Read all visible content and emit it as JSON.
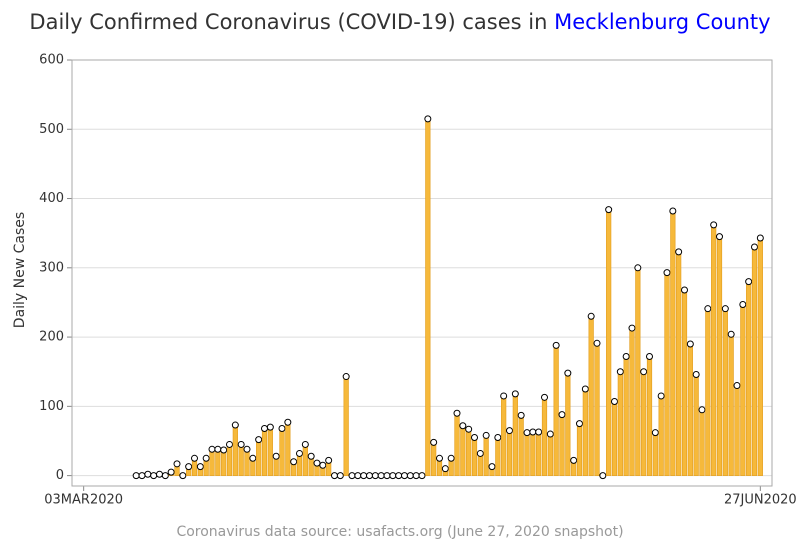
{
  "chart_data": {
    "type": "needle",
    "title": "Daily Confirmed Coronavirus (COVID-19) cases in ",
    "title_highlight": "Mecklenburg County",
    "title_highlight_color": "#0000ff",
    "y_label": "Daily New Cases",
    "footnote": "Coronavirus data source: usafacts.org (June 27, 2020 snapshot)",
    "color": "#f6b93b",
    "grid": true,
    "ylim": [
      -15,
      600
    ],
    "yticks": [
      0,
      100,
      200,
      300,
      400,
      500,
      600
    ],
    "xlim": [
      "2020-03-01",
      "2020-06-29"
    ],
    "xticks": [
      {
        "value": "2020-03-03",
        "label": "03MAR2020"
      },
      {
        "value": "2020-06-27",
        "label": "27JUN2020"
      }
    ],
    "x": [
      "2020-03-12",
      "2020-03-13",
      "2020-03-14",
      "2020-03-15",
      "2020-03-16",
      "2020-03-17",
      "2020-03-18",
      "2020-03-19",
      "2020-03-20",
      "2020-03-21",
      "2020-03-22",
      "2020-03-23",
      "2020-03-24",
      "2020-03-25",
      "2020-03-26",
      "2020-03-27",
      "2020-03-28",
      "2020-03-29",
      "2020-03-30",
      "2020-03-31",
      "2020-04-01",
      "2020-04-02",
      "2020-04-03",
      "2020-04-04",
      "2020-04-05",
      "2020-04-06",
      "2020-04-07",
      "2020-04-08",
      "2020-04-09",
      "2020-04-10",
      "2020-04-11",
      "2020-04-12",
      "2020-04-13",
      "2020-04-14",
      "2020-04-15",
      "2020-04-16",
      "2020-04-17",
      "2020-04-18",
      "2020-04-19",
      "2020-04-20",
      "2020-04-21",
      "2020-04-22",
      "2020-04-23",
      "2020-04-24",
      "2020-04-25",
      "2020-04-26",
      "2020-04-27",
      "2020-04-28",
      "2020-04-29",
      "2020-04-30",
      "2020-05-01",
      "2020-05-02",
      "2020-05-03",
      "2020-05-04",
      "2020-05-05",
      "2020-05-06",
      "2020-05-07",
      "2020-05-08",
      "2020-05-09",
      "2020-05-10",
      "2020-05-11",
      "2020-05-12",
      "2020-05-13",
      "2020-05-14",
      "2020-05-15",
      "2020-05-16",
      "2020-05-17",
      "2020-05-18",
      "2020-05-19",
      "2020-05-20",
      "2020-05-21",
      "2020-05-22",
      "2020-05-23",
      "2020-05-24",
      "2020-05-25",
      "2020-05-26",
      "2020-05-27",
      "2020-05-28",
      "2020-05-29",
      "2020-05-30",
      "2020-05-31",
      "2020-06-01",
      "2020-06-02",
      "2020-06-03",
      "2020-06-04",
      "2020-06-05",
      "2020-06-06",
      "2020-06-07",
      "2020-06-08",
      "2020-06-09",
      "2020-06-10",
      "2020-06-11",
      "2020-06-12",
      "2020-06-13",
      "2020-06-14",
      "2020-06-15",
      "2020-06-16",
      "2020-06-17",
      "2020-06-18",
      "2020-06-19",
      "2020-06-20",
      "2020-06-21",
      "2020-06-22",
      "2020-06-23",
      "2020-06-24",
      "2020-06-25",
      "2020-06-26",
      "2020-06-27"
    ],
    "values": [
      0,
      0,
      2,
      0,
      2,
      0,
      5,
      17,
      0,
      13,
      25,
      13,
      25,
      38,
      38,
      37,
      45,
      73,
      45,
      38,
      25,
      52,
      68,
      70,
      28,
      68,
      77,
      20,
      32,
      45,
      28,
      18,
      15,
      22,
      0,
      0,
      143,
      0,
      0,
      0,
      0,
      0,
      0,
      0,
      0,
      0,
      0,
      0,
      0,
      0,
      515,
      48,
      25,
      10,
      25,
      90,
      72,
      67,
      55,
      32,
      58,
      13,
      55,
      115,
      65,
      118,
      87,
      62,
      63,
      63,
      113,
      60,
      188,
      88,
      148,
      22,
      75,
      125,
      230,
      191,
      0,
      384,
      107,
      150,
      172,
      213,
      300,
      150,
      172,
      62,
      115,
      293,
      382,
      323,
      268,
      190,
      146,
      95,
      241,
      362,
      345,
      241,
      204,
      130,
      247,
      280,
      330,
      343
    ]
  }
}
